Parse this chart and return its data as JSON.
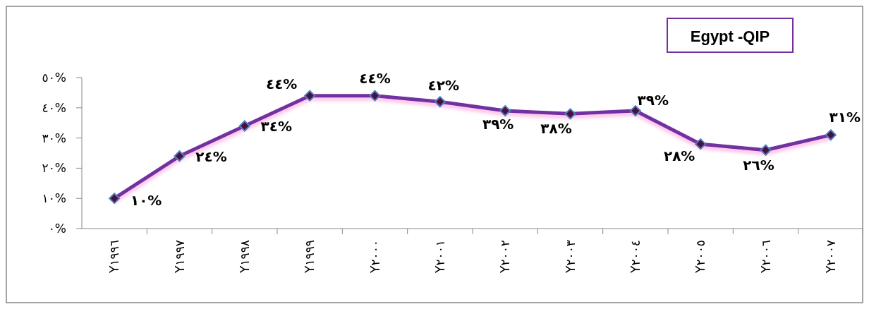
{
  "chart_data": {
    "type": "line",
    "title": "Egypt -QIP",
    "categories": [
      "Y١٩٩٦",
      "Y١٩٩٧",
      "Y١٩٩٨",
      "Y١٩٩٩",
      "Y٢٠٠٠",
      "Y٢٠٠١",
      "Y٢٠٠٢",
      "Y٢٠٠٣",
      "Y٢٠٠٤",
      "Y٢٠٠٥",
      "Y٢٠٠٦",
      "Y٢٠٠٧"
    ],
    "series": [
      {
        "color": "#7030a0",
        "values": [
          10,
          24,
          34,
          44,
          44,
          42,
          39,
          38,
          39,
          28,
          26,
          31
        ],
        "value_labels": [
          "١٠%",
          "٢٤%",
          "٣٤%",
          "٤٤%",
          "٤٤%",
          "٤٢%",
          "٣٩%",
          "٣٨%",
          "٣٩%",
          "٢٨%",
          "٢٦%",
          "٣١%"
        ]
      }
    ],
    "ylim": [
      0,
      50
    ],
    "yticks": [
      {
        "value": 0,
        "label": "٠%"
      },
      {
        "value": 10,
        "label": "١٠%"
      },
      {
        "value": 20,
        "label": "٢٠%"
      },
      {
        "value": 30,
        "label": "٣٠%"
      },
      {
        "value": 40,
        "label": "٤٠%"
      },
      {
        "value": 50,
        "label": "٥٠%"
      }
    ],
    "grid": false,
    "marker": "diamond",
    "line_style": "solid"
  }
}
